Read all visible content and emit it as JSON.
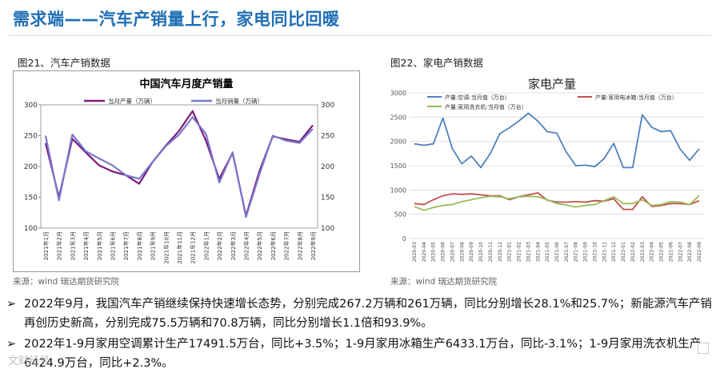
{
  "slide": {
    "title": "需求端——汽车产销量上行，家电同比回暖"
  },
  "figures": [
    {
      "caption": "图21、汽车产销数据",
      "source": "来源：wind   瑞达期货研究院"
    },
    {
      "caption": "图22、家电产销数据",
      "source": "来源：wind   瑞达期货研究院"
    }
  ],
  "bullets": [
    {
      "marker": "➢",
      "text": "2022年9月，我国汽车产销继续保持快速增长态势，分别完成267.2万辆和261万辆，同比分别增长28.1%和25.7%；新能源汽车产销再创历史新高，分别完成75.5万辆和70.8万辆，同比分别增长1.1倍和93.9%。"
    },
    {
      "marker": "➢",
      "text": "2022年1-9月家用空调累计生产17491.5万台，同比+3.5%；1-9月家用冰箱生产6433.1万台，同比-3.1%；1-9月家用洗衣机生产6424.9万台，同比+2.3%。"
    }
  ],
  "watermark": "文财经号",
  "chart_data": [
    {
      "type": "line",
      "title": "中国汽车月度产销量",
      "x": [
        "2021年1月",
        "2021年2月",
        "2021年3月",
        "2021年4月",
        "2021年5月",
        "2021年6月",
        "2021年7月",
        "2021年8月",
        "2021年9月",
        "2021年10月",
        "2021年11月",
        "2021年12月",
        "2022年1月",
        "2022年2月",
        "2022年3月",
        "2022年4月",
        "2022年5月",
        "2022年6月",
        "2022年7月",
        "2022年8月",
        "2022年9月"
      ],
      "series": [
        {
          "name": "当月产量（万辆）",
          "color": "#7b1a7e",
          "values": [
            238,
            150,
            245,
            223,
            202,
            192,
            186,
            172,
            207,
            234,
            258,
            290,
            242,
            180,
            222,
            120,
            192,
            249,
            244,
            240,
            267
          ]
        },
        {
          "name": "当月销量（万辆）",
          "color": "#7a79c9",
          "values": [
            250,
            145,
            252,
            225,
            213,
            202,
            186,
            180,
            207,
            233,
            252,
            280,
            253,
            174,
            223,
            118,
            187,
            250,
            242,
            238,
            261
          ]
        }
      ],
      "ylim": [
        100,
        300
      ],
      "yticks": [
        100,
        150,
        200,
        250,
        300
      ],
      "legend": "top-center",
      "grid": false
    },
    {
      "type": "line",
      "title": "家电产量",
      "x": [
        "2020-03",
        "2020-04",
        "2020-05",
        "2020-06",
        "2020-07",
        "2020-08",
        "2020-09",
        "2020-10",
        "2020-11",
        "2020-12",
        "2021-01",
        "2021-02",
        "2021-03",
        "2021-04",
        "2021-05",
        "2021-06",
        "2021-07",
        "2021-08",
        "2021-09",
        "2021-10",
        "2021-11",
        "2021-12",
        "2022-01",
        "2022-02",
        "2022-03",
        "2022-04",
        "2022-05",
        "2022-06",
        "2022-07",
        "2022-08",
        "2022-09"
      ],
      "series": [
        {
          "name": "产量:空调:当月值（万台）",
          "color": "#4f81bd",
          "values": [
            1950,
            1920,
            1950,
            2480,
            1850,
            1540,
            1700,
            1460,
            1750,
            2160,
            2280,
            2420,
            2580,
            2420,
            2200,
            2170,
            1780,
            1500,
            1510,
            1480,
            1650,
            1960,
            1460,
            1460,
            2550,
            2290,
            2200,
            2220,
            1840,
            1610,
            1850
          ]
        },
        {
          "name": "产量:家用电冰箱:当月值（万台）",
          "color": "#c0504d",
          "values": [
            720,
            700,
            800,
            880,
            920,
            910,
            920,
            900,
            880,
            880,
            800,
            860,
            900,
            940,
            790,
            750,
            750,
            760,
            750,
            780,
            770,
            820,
            600,
            600,
            860,
            660,
            680,
            720,
            720,
            700,
            780
          ]
        },
        {
          "name": "产量:家用洗衣机:当月值（万台）",
          "color": "#9bbb59",
          "values": [
            660,
            580,
            640,
            680,
            700,
            760,
            800,
            840,
            870,
            860,
            820,
            860,
            870,
            860,
            800,
            720,
            690,
            650,
            680,
            700,
            780,
            860,
            720,
            720,
            800,
            680,
            700,
            760,
            750,
            700,
            880
          ]
        }
      ],
      "ylim": [
        0,
        3000
      ],
      "yticks": [
        0,
        500,
        1000,
        1500,
        2000,
        2500,
        3000
      ],
      "legend": "top",
      "grid": true
    }
  ]
}
